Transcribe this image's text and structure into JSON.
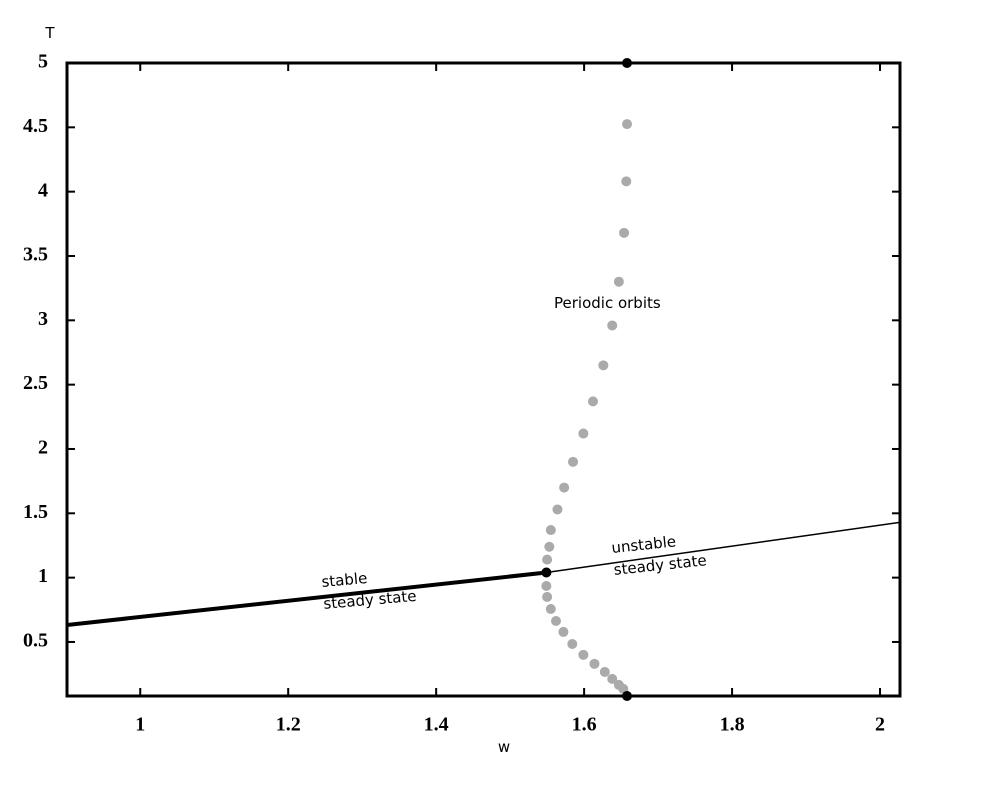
{
  "chart_data": {
    "type": "line",
    "x_label": "w",
    "y_label": "T",
    "xlim": [
      0.901,
      2.027
    ],
    "ylim": [
      0.08,
      5
    ],
    "xticks": [
      1,
      1.2,
      1.4,
      1.6,
      1.8,
      2
    ],
    "yticks": [
      0.5,
      1,
      1.5,
      2,
      2.5,
      3,
      3.5,
      4,
      4.5,
      5
    ],
    "series": [
      {
        "mode": "line",
        "color": "#000000",
        "width": 4,
        "x": [
          0.901,
          1.549
        ],
        "values": [
          0.632,
          1.04
        ]
      },
      {
        "mode": "line",
        "color": "#000000",
        "width": 1.5,
        "x": [
          1.549,
          2.027
        ],
        "values": [
          1.04,
          1.43
        ]
      },
      {
        "mode": "markers",
        "color": "#aaaaaa",
        "x": [
          1.658,
          1.657,
          1.654,
          1.647,
          1.638,
          1.626,
          1.612,
          1.599,
          1.585,
          1.573,
          1.564,
          1.555,
          1.553,
          1.55,
          1.549,
          1.549,
          1.55,
          1.555,
          1.562,
          1.572,
          1.584,
          1.599,
          1.614,
          1.628,
          1.638,
          1.647,
          1.653
        ],
        "values": [
          4.525,
          4.08,
          3.68,
          3.3,
          2.96,
          2.65,
          2.37,
          2.12,
          1.9,
          1.7,
          1.53,
          1.37,
          1.24,
          1.14,
          1.04,
          0.935,
          0.85,
          0.756,
          0.663,
          0.578,
          0.484,
          0.4,
          0.33,
          0.267,
          0.213,
          0.166,
          0.135
        ]
      },
      {
        "mode": "markers",
        "color": "#000000",
        "x": [
          1.658,
          1.549,
          1.658
        ],
        "values": [
          5,
          1.04,
          0.08
        ]
      }
    ],
    "annotations": [
      {
        "lines": [
          "Periodic orbits"
        ]
      },
      {
        "lines": [
          "stable",
          "steady state"
        ]
      },
      {
        "lines": [
          "unstable",
          "steady state"
        ]
      }
    ]
  }
}
